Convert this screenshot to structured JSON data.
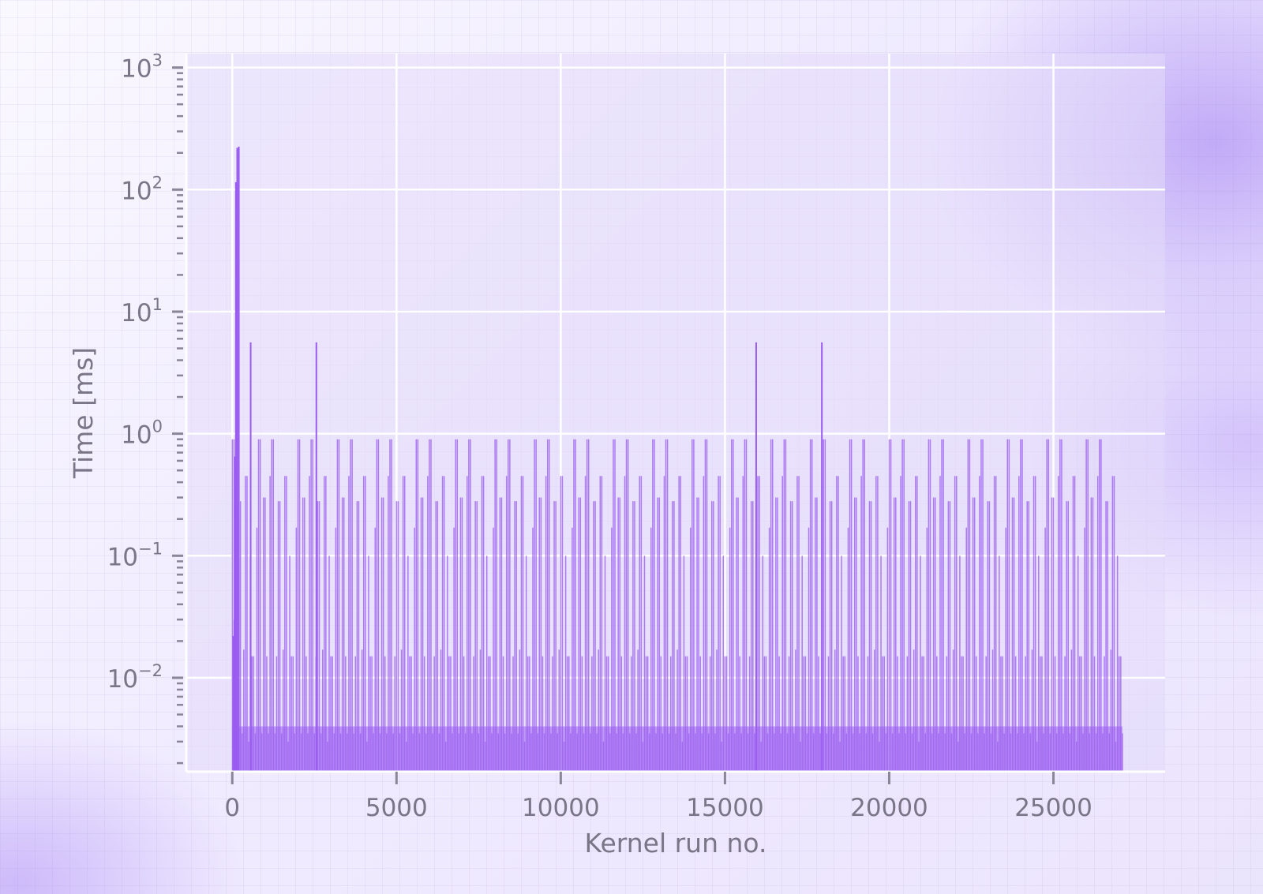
{
  "chart_data": {
    "type": "bar",
    "title": "",
    "xlabel": "Kernel run no.",
    "ylabel": "Time [ms]",
    "yscale": "log",
    "xlim": [
      -1400,
      28400
    ],
    "ylim": [
      0.0017,
      1300
    ],
    "grid": true,
    "x_ticks": [
      0,
      5000,
      10000,
      15000,
      20000,
      25000
    ],
    "x_tick_labels": [
      "0",
      "5000",
      "10000",
      "15000",
      "20000",
      "25000"
    ],
    "y_ticks": [
      0.01,
      0.1,
      1,
      10,
      100,
      1000
    ],
    "y_tick_labels": [
      {
        "base": "10",
        "exp": "−2"
      },
      {
        "base": "10",
        "exp": "−1"
      },
      {
        "base": "10",
        "exp": "0"
      },
      {
        "base": "10",
        "exp": "1"
      },
      {
        "base": "10",
        "exp": "2"
      },
      {
        "base": "10",
        "exp": "3"
      }
    ],
    "bar_color": "#9a5cf0",
    "series": [
      {
        "x_range": [
          0,
          27100
        ],
        "cycle_length": 1200,
        "cycle_pattern_ms": [
          0.9,
          0.0035,
          0.015,
          0.28,
          0.0035,
          0.017,
          0.45,
          0.003,
          0.1,
          0.015,
          0.0035,
          0.17,
          0.9,
          0.0035,
          0.3,
          0.015,
          0.0035,
          0.45
        ],
        "spikes": [
          {
            "x": 30,
            "y": 0.022
          },
          {
            "x": 60,
            "y": 0.03
          },
          {
            "x": 80,
            "y": 0.65
          },
          {
            "x": 110,
            "y": 115
          },
          {
            "x": 150,
            "y": 220
          },
          {
            "x": 200,
            "y": 225
          },
          {
            "x": 560,
            "y": 5.6
          },
          {
            "x": 2560,
            "y": 5.6
          },
          {
            "x": 15950,
            "y": 5.6
          },
          {
            "x": 17950,
            "y": 5.6
          }
        ]
      }
    ]
  }
}
